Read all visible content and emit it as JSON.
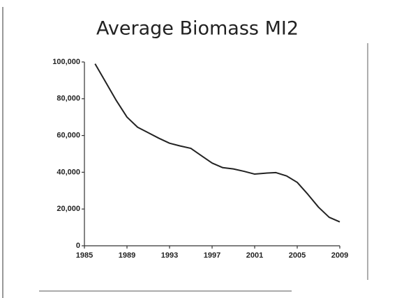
{
  "chart_data": {
    "type": "line",
    "title": "Average Biomass MI2",
    "x": [
      1986,
      1987,
      1988,
      1989,
      1990,
      1991,
      1992,
      1993,
      1994,
      1995,
      1996,
      1997,
      1998,
      1999,
      2000,
      2001,
      2002,
      2003,
      2004,
      2005,
      2006,
      2007,
      2008,
      2009
    ],
    "values": [
      99000,
      89000,
      79000,
      70000,
      64500,
      61500,
      58500,
      55800,
      54300,
      53000,
      49000,
      45000,
      42500,
      41800,
      40500,
      39000,
      39500,
      39800,
      38000,
      34500,
      28000,
      21000,
      15500,
      13000
    ],
    "color": "#222222",
    "xlim": [
      1985,
      2009
    ],
    "xticks": [
      1985,
      1989,
      1993,
      1997,
      2001,
      2005,
      2009
    ],
    "ylim": [
      0,
      100000
    ],
    "yticks": [
      0,
      {
        "value": 20000,
        "label": "20,000"
      },
      {
        "value": 40000,
        "label": "40,000"
      },
      {
        "value": 60000,
        "label": "60,000"
      },
      {
        "value": 80000,
        "label": "80,000"
      },
      {
        "value": 100000,
        "label": "100,000"
      }
    ],
    "grid": false
  }
}
